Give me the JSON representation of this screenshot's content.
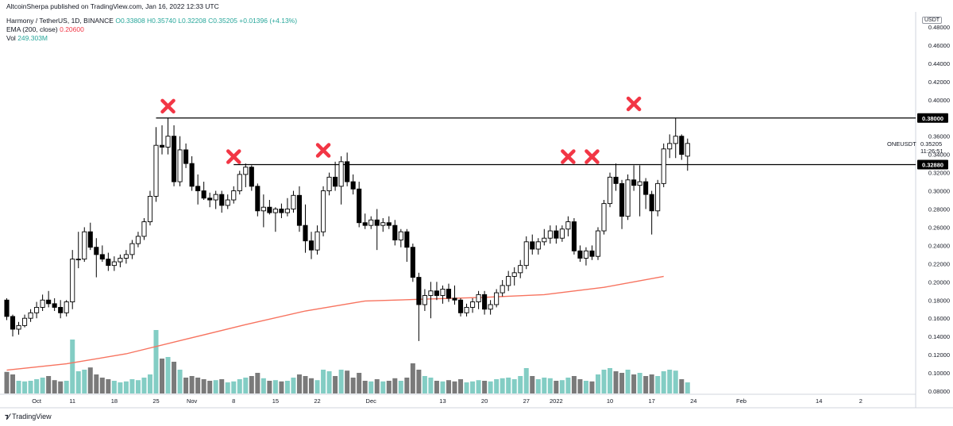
{
  "header": {
    "published": "AltcoinSherpa published on TradingView.com, Jan 16, 2022 12:33 UTC",
    "symbol_line": "Harmony / TetherUS, 1D, BINANCE",
    "ohlc": "O0.33808 H0.35740 L0.32208 C0.35205 +0.01396 (+4.13%)",
    "ema_label": "EMA (200, close)",
    "ema_value": "0.20600",
    "vol_label": "Vol",
    "vol_value": "249.303M"
  },
  "footer": {
    "logo_text": "TradingView",
    "logo_icon": "tradingview-logo-icon"
  },
  "colors": {
    "up": "#ffffff",
    "down": "#000000",
    "wick": "#000000",
    "vol_up": "#83cdc4",
    "vol_down": "#7a7a7a",
    "ema": "#f7735f",
    "marker": "#f23645",
    "level": "#000000"
  },
  "chart_data": {
    "type": "candlestick",
    "currency": "USDT",
    "ylim": [
      0.08,
      0.48
    ],
    "y_ticks": [
      "0.48000",
      "0.46000",
      "0.44000",
      "0.42000",
      "0.40000",
      "0.38000",
      "0.36000",
      "0.34000",
      "0.32000",
      "0.30000",
      "0.28000",
      "0.26000",
      "0.24000",
      "0.22000",
      "0.20000",
      "0.18000",
      "0.16000",
      "0.14000",
      "0.12000",
      "0.10000",
      "0.08000"
    ],
    "x_ticks": [
      {
        "label": "Oct",
        "day": 5
      },
      {
        "label": "11",
        "day": 11
      },
      {
        "label": "18",
        "day": 18
      },
      {
        "label": "25",
        "day": 25
      },
      {
        "label": "Nov",
        "day": 31
      },
      {
        "label": "8",
        "day": 38
      },
      {
        "label": "15",
        "day": 45
      },
      {
        "label": "22",
        "day": 52
      },
      {
        "label": "Dec",
        "day": 61
      },
      {
        "label": "13",
        "day": 73
      },
      {
        "label": "20",
        "day": 80
      },
      {
        "label": "27",
        "day": 87
      },
      {
        "label": "2022",
        "day": 92
      },
      {
        "label": "10",
        "day": 101
      },
      {
        "label": "17",
        "day": 108
      },
      {
        "label": "24",
        "day": 115
      },
      {
        "label": "Feb",
        "day": 123
      },
      {
        "label": "14",
        "day": 136
      },
      {
        "label": "2",
        "day": 143
      }
    ],
    "candles": [
      {
        "o": 0.18,
        "h": 0.182,
        "l": 0.158,
        "c": 0.162,
        "v": 68
      },
      {
        "o": 0.162,
        "h": 0.164,
        "l": 0.14,
        "c": 0.148,
        "v": 60
      },
      {
        "o": 0.148,
        "h": 0.156,
        "l": 0.142,
        "c": 0.152,
        "v": 40
      },
      {
        "o": 0.152,
        "h": 0.164,
        "l": 0.15,
        "c": 0.16,
        "v": 38
      },
      {
        "o": 0.16,
        "h": 0.17,
        "l": 0.156,
        "c": 0.166,
        "v": 40
      },
      {
        "o": 0.166,
        "h": 0.178,
        "l": 0.16,
        "c": 0.172,
        "v": 45
      },
      {
        "o": 0.172,
        "h": 0.186,
        "l": 0.168,
        "c": 0.18,
        "v": 50
      },
      {
        "o": 0.18,
        "h": 0.19,
        "l": 0.172,
        "c": 0.176,
        "v": 55
      },
      {
        "o": 0.176,
        "h": 0.182,
        "l": 0.168,
        "c": 0.172,
        "v": 42
      },
      {
        "o": 0.172,
        "h": 0.18,
        "l": 0.16,
        "c": 0.166,
        "v": 38
      },
      {
        "o": 0.166,
        "h": 0.18,
        "l": 0.162,
        "c": 0.178,
        "v": 40
      },
      {
        "o": 0.178,
        "h": 0.235,
        "l": 0.17,
        "c": 0.225,
        "v": 170
      },
      {
        "o": 0.225,
        "h": 0.255,
        "l": 0.215,
        "c": 0.225,
        "v": 70
      },
      {
        "o": 0.225,
        "h": 0.26,
        "l": 0.222,
        "c": 0.255,
        "v": 75
      },
      {
        "o": 0.255,
        "h": 0.265,
        "l": 0.235,
        "c": 0.238,
        "v": 82
      },
      {
        "o": 0.238,
        "h": 0.248,
        "l": 0.205,
        "c": 0.23,
        "v": 60
      },
      {
        "o": 0.23,
        "h": 0.24,
        "l": 0.222,
        "c": 0.225,
        "v": 50
      },
      {
        "o": 0.225,
        "h": 0.232,
        "l": 0.212,
        "c": 0.218,
        "v": 45
      },
      {
        "o": 0.218,
        "h": 0.228,
        "l": 0.212,
        "c": 0.222,
        "v": 40
      },
      {
        "o": 0.222,
        "h": 0.23,
        "l": 0.216,
        "c": 0.226,
        "v": 35
      },
      {
        "o": 0.226,
        "h": 0.235,
        "l": 0.22,
        "c": 0.23,
        "v": 38
      },
      {
        "o": 0.23,
        "h": 0.246,
        "l": 0.225,
        "c": 0.242,
        "v": 45
      },
      {
        "o": 0.242,
        "h": 0.255,
        "l": 0.238,
        "c": 0.25,
        "v": 42
      },
      {
        "o": 0.25,
        "h": 0.27,
        "l": 0.246,
        "c": 0.266,
        "v": 50
      },
      {
        "o": 0.266,
        "h": 0.3,
        "l": 0.262,
        "c": 0.294,
        "v": 60
      },
      {
        "o": 0.294,
        "h": 0.37,
        "l": 0.288,
        "c": 0.35,
        "v": 200
      },
      {
        "o": 0.35,
        "h": 0.372,
        "l": 0.34,
        "c": 0.348,
        "v": 110
      },
      {
        "o": 0.348,
        "h": 0.38,
        "l": 0.34,
        "c": 0.36,
        "v": 115
      },
      {
        "o": 0.36,
        "h": 0.372,
        "l": 0.305,
        "c": 0.31,
        "v": 100
      },
      {
        "o": 0.31,
        "h": 0.36,
        "l": 0.305,
        "c": 0.345,
        "v": 75
      },
      {
        "o": 0.345,
        "h": 0.352,
        "l": 0.325,
        "c": 0.33,
        "v": 50
      },
      {
        "o": 0.33,
        "h": 0.338,
        "l": 0.3,
        "c": 0.305,
        "v": 55
      },
      {
        "o": 0.305,
        "h": 0.318,
        "l": 0.285,
        "c": 0.3,
        "v": 50
      },
      {
        "o": 0.3,
        "h": 0.31,
        "l": 0.29,
        "c": 0.292,
        "v": 45
      },
      {
        "o": 0.292,
        "h": 0.298,
        "l": 0.282,
        "c": 0.29,
        "v": 40
      },
      {
        "o": 0.29,
        "h": 0.3,
        "l": 0.28,
        "c": 0.296,
        "v": 42
      },
      {
        "o": 0.296,
        "h": 0.3,
        "l": 0.276,
        "c": 0.284,
        "v": 45
      },
      {
        "o": 0.284,
        "h": 0.296,
        "l": 0.28,
        "c": 0.29,
        "v": 35
      },
      {
        "o": 0.29,
        "h": 0.305,
        "l": 0.286,
        "c": 0.3,
        "v": 38
      },
      {
        "o": 0.3,
        "h": 0.322,
        "l": 0.296,
        "c": 0.318,
        "v": 45
      },
      {
        "o": 0.318,
        "h": 0.33,
        "l": 0.304,
        "c": 0.326,
        "v": 50
      },
      {
        "o": 0.326,
        "h": 0.328,
        "l": 0.3,
        "c": 0.305,
        "v": 55
      },
      {
        "o": 0.305,
        "h": 0.308,
        "l": 0.272,
        "c": 0.278,
        "v": 65
      },
      {
        "o": 0.278,
        "h": 0.296,
        "l": 0.26,
        "c": 0.282,
        "v": 48
      },
      {
        "o": 0.282,
        "h": 0.29,
        "l": 0.274,
        "c": 0.276,
        "v": 40
      },
      {
        "o": 0.276,
        "h": 0.282,
        "l": 0.255,
        "c": 0.28,
        "v": 42
      },
      {
        "o": 0.28,
        "h": 0.286,
        "l": 0.27,
        "c": 0.276,
        "v": 38
      },
      {
        "o": 0.276,
        "h": 0.292,
        "l": 0.272,
        "c": 0.28,
        "v": 40
      },
      {
        "o": 0.28,
        "h": 0.3,
        "l": 0.276,
        "c": 0.295,
        "v": 50
      },
      {
        "o": 0.295,
        "h": 0.305,
        "l": 0.255,
        "c": 0.262,
        "v": 60
      },
      {
        "o": 0.262,
        "h": 0.285,
        "l": 0.232,
        "c": 0.245,
        "v": 55
      },
      {
        "o": 0.245,
        "h": 0.255,
        "l": 0.225,
        "c": 0.235,
        "v": 48
      },
      {
        "o": 0.235,
        "h": 0.262,
        "l": 0.23,
        "c": 0.255,
        "v": 42
      },
      {
        "o": 0.255,
        "h": 0.305,
        "l": 0.25,
        "c": 0.3,
        "v": 75
      },
      {
        "o": 0.3,
        "h": 0.32,
        "l": 0.295,
        "c": 0.315,
        "v": 70
      },
      {
        "o": 0.315,
        "h": 0.332,
        "l": 0.3,
        "c": 0.305,
        "v": 55
      },
      {
        "o": 0.305,
        "h": 0.338,
        "l": 0.285,
        "c": 0.332,
        "v": 75
      },
      {
        "o": 0.332,
        "h": 0.342,
        "l": 0.305,
        "c": 0.31,
        "v": 72
      },
      {
        "o": 0.31,
        "h": 0.318,
        "l": 0.296,
        "c": 0.302,
        "v": 50
      },
      {
        "o": 0.302,
        "h": 0.31,
        "l": 0.26,
        "c": 0.265,
        "v": 65
      },
      {
        "o": 0.265,
        "h": 0.275,
        "l": 0.258,
        "c": 0.262,
        "v": 40
      },
      {
        "o": 0.262,
        "h": 0.272,
        "l": 0.258,
        "c": 0.268,
        "v": 38
      },
      {
        "o": 0.268,
        "h": 0.28,
        "l": 0.235,
        "c": 0.262,
        "v": 45
      },
      {
        "o": 0.262,
        "h": 0.27,
        "l": 0.255,
        "c": 0.265,
        "v": 38
      },
      {
        "o": 0.265,
        "h": 0.272,
        "l": 0.258,
        "c": 0.262,
        "v": 40
      },
      {
        "o": 0.262,
        "h": 0.268,
        "l": 0.24,
        "c": 0.246,
        "v": 48
      },
      {
        "o": 0.246,
        "h": 0.258,
        "l": 0.238,
        "c": 0.255,
        "v": 40
      },
      {
        "o": 0.255,
        "h": 0.258,
        "l": 0.222,
        "c": 0.238,
        "v": 50
      },
      {
        "o": 0.238,
        "h": 0.242,
        "l": 0.2,
        "c": 0.205,
        "v": 95
      },
      {
        "o": 0.205,
        "h": 0.21,
        "l": 0.135,
        "c": 0.175,
        "v": 75
      },
      {
        "o": 0.175,
        "h": 0.192,
        "l": 0.168,
        "c": 0.185,
        "v": 55
      },
      {
        "o": 0.185,
        "h": 0.2,
        "l": 0.16,
        "c": 0.19,
        "v": 50
      },
      {
        "o": 0.19,
        "h": 0.2,
        "l": 0.18,
        "c": 0.185,
        "v": 40
      },
      {
        "o": 0.185,
        "h": 0.196,
        "l": 0.176,
        "c": 0.192,
        "v": 38
      },
      {
        "o": 0.192,
        "h": 0.198,
        "l": 0.178,
        "c": 0.182,
        "v": 42
      },
      {
        "o": 0.182,
        "h": 0.196,
        "l": 0.175,
        "c": 0.18,
        "v": 38
      },
      {
        "o": 0.18,
        "h": 0.182,
        "l": 0.162,
        "c": 0.166,
        "v": 45
      },
      {
        "o": 0.166,
        "h": 0.176,
        "l": 0.162,
        "c": 0.172,
        "v": 35
      },
      {
        "o": 0.172,
        "h": 0.182,
        "l": 0.166,
        "c": 0.178,
        "v": 38
      },
      {
        "o": 0.178,
        "h": 0.19,
        "l": 0.17,
        "c": 0.186,
        "v": 42
      },
      {
        "o": 0.186,
        "h": 0.19,
        "l": 0.164,
        "c": 0.17,
        "v": 40
      },
      {
        "o": 0.17,
        "h": 0.18,
        "l": 0.164,
        "c": 0.175,
        "v": 38
      },
      {
        "o": 0.175,
        "h": 0.192,
        "l": 0.172,
        "c": 0.188,
        "v": 45
      },
      {
        "o": 0.188,
        "h": 0.202,
        "l": 0.184,
        "c": 0.196,
        "v": 48
      },
      {
        "o": 0.196,
        "h": 0.212,
        "l": 0.19,
        "c": 0.206,
        "v": 50
      },
      {
        "o": 0.206,
        "h": 0.216,
        "l": 0.196,
        "c": 0.21,
        "v": 45
      },
      {
        "o": 0.21,
        "h": 0.224,
        "l": 0.204,
        "c": 0.218,
        "v": 55
      },
      {
        "o": 0.218,
        "h": 0.25,
        "l": 0.214,
        "c": 0.244,
        "v": 80
      },
      {
        "o": 0.244,
        "h": 0.252,
        "l": 0.23,
        "c": 0.236,
        "v": 55
      },
      {
        "o": 0.236,
        "h": 0.248,
        "l": 0.23,
        "c": 0.244,
        "v": 45
      },
      {
        "o": 0.244,
        "h": 0.258,
        "l": 0.24,
        "c": 0.248,
        "v": 50
      },
      {
        "o": 0.248,
        "h": 0.262,
        "l": 0.242,
        "c": 0.256,
        "v": 48
      },
      {
        "o": 0.256,
        "h": 0.262,
        "l": 0.242,
        "c": 0.248,
        "v": 40
      },
      {
        "o": 0.248,
        "h": 0.262,
        "l": 0.244,
        "c": 0.258,
        "v": 42
      },
      {
        "o": 0.258,
        "h": 0.272,
        "l": 0.25,
        "c": 0.266,
        "v": 50
      },
      {
        "o": 0.266,
        "h": 0.27,
        "l": 0.23,
        "c": 0.234,
        "v": 55
      },
      {
        "o": 0.234,
        "h": 0.24,
        "l": 0.222,
        "c": 0.226,
        "v": 45
      },
      {
        "o": 0.226,
        "h": 0.238,
        "l": 0.218,
        "c": 0.234,
        "v": 40
      },
      {
        "o": 0.234,
        "h": 0.24,
        "l": 0.224,
        "c": 0.228,
        "v": 38
      },
      {
        "o": 0.228,
        "h": 0.26,
        "l": 0.224,
        "c": 0.256,
        "v": 60
      },
      {
        "o": 0.256,
        "h": 0.29,
        "l": 0.252,
        "c": 0.286,
        "v": 75
      },
      {
        "o": 0.286,
        "h": 0.32,
        "l": 0.282,
        "c": 0.315,
        "v": 80
      },
      {
        "o": 0.315,
        "h": 0.33,
        "l": 0.3,
        "c": 0.308,
        "v": 70
      },
      {
        "o": 0.308,
        "h": 0.312,
        "l": 0.258,
        "c": 0.272,
        "v": 65
      },
      {
        "o": 0.272,
        "h": 0.318,
        "l": 0.268,
        "c": 0.312,
        "v": 75
      },
      {
        "o": 0.312,
        "h": 0.328,
        "l": 0.3,
        "c": 0.306,
        "v": 60
      },
      {
        "o": 0.306,
        "h": 0.328,
        "l": 0.272,
        "c": 0.31,
        "v": 65
      },
      {
        "o": 0.31,
        "h": 0.314,
        "l": 0.28,
        "c": 0.296,
        "v": 55
      },
      {
        "o": 0.296,
        "h": 0.3,
        "l": 0.252,
        "c": 0.278,
        "v": 60
      },
      {
        "o": 0.278,
        "h": 0.312,
        "l": 0.272,
        "c": 0.308,
        "v": 55
      },
      {
        "o": 0.308,
        "h": 0.352,
        "l": 0.304,
        "c": 0.346,
        "v": 70
      },
      {
        "o": 0.346,
        "h": 0.362,
        "l": 0.336,
        "c": 0.352,
        "v": 75
      },
      {
        "o": 0.352,
        "h": 0.38,
        "l": 0.336,
        "c": 0.36,
        "v": 72
      },
      {
        "o": 0.36,
        "h": 0.362,
        "l": 0.334,
        "c": 0.34,
        "v": 45
      },
      {
        "o": 0.33808,
        "h": 0.3574,
        "l": 0.32208,
        "c": 0.35205,
        "v": 35
      }
    ],
    "ema_200": [
      {
        "day": 0,
        "value": 0.103
      },
      {
        "day": 10,
        "value": 0.11
      },
      {
        "day": 20,
        "value": 0.121
      },
      {
        "day": 30,
        "value": 0.137
      },
      {
        "day": 40,
        "value": 0.153
      },
      {
        "day": 50,
        "value": 0.168
      },
      {
        "day": 60,
        "value": 0.179
      },
      {
        "day": 70,
        "value": 0.181
      },
      {
        "day": 80,
        "value": 0.183
      },
      {
        "day": 90,
        "value": 0.186
      },
      {
        "day": 100,
        "value": 0.194
      },
      {
        "day": 110,
        "value": 0.206
      }
    ],
    "levels": [
      {
        "value": 0.38,
        "label": "0.38000",
        "start_day": 25
      },
      {
        "value": 0.3288,
        "label": "0.32880",
        "start_day": 38
      }
    ],
    "resistance_markers": [
      {
        "day": 27,
        "price": 0.393
      },
      {
        "day": 38,
        "price": 0.3375
      },
      {
        "day": 53,
        "price": 0.3445
      },
      {
        "day": 94,
        "price": 0.3375
      },
      {
        "day": 98,
        "price": 0.3375
      },
      {
        "day": 105,
        "price": 0.3955
      }
    ],
    "current": {
      "symbol": "ONEUSDT",
      "price": "0.35205",
      "countdown": "11:26:51"
    }
  }
}
